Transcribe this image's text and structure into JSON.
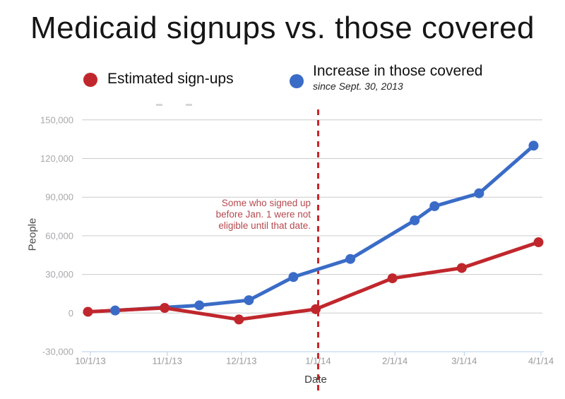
{
  "title": "Medicaid signups vs. those covered",
  "legend": {
    "items": [
      {
        "label": "Estimated sign-ups",
        "sublabel": "",
        "color": "#c0272d"
      },
      {
        "label": "Increase in those covered",
        "sublabel": "since Sept. 30, 2013",
        "color": "#3a6cc7"
      }
    ]
  },
  "annotation": {
    "lines": [
      "Some who signed up",
      "before Jan. 1 were not",
      "eligible until that date."
    ],
    "color": "#b5494f",
    "date_line": "1/1/14"
  },
  "chart_data": {
    "type": "line",
    "title": "Medicaid signups vs. those covered",
    "xlabel": "Date",
    "ylabel": "People",
    "grid": true,
    "legend_position": "top",
    "ylim": [
      -30000,
      150000
    ],
    "x_ticks": [
      "10/1/13",
      "11/1/13",
      "12/1/13",
      "1/1/14",
      "2/1/14",
      "3/1/14",
      "4/1/14"
    ],
    "y_ticks": [
      -30000,
      0,
      30000,
      60000,
      90000,
      120000,
      150000
    ],
    "y_tick_labels": [
      "-30,000",
      "0",
      "30,000",
      "60,000",
      "90,000",
      "120,000",
      "150,000"
    ],
    "series": [
      {
        "name": "Estimated sign-ups",
        "color": "#c0272d",
        "points": [
          {
            "date": "9/30/13",
            "value": 1000
          },
          {
            "date": "10/31/13",
            "value": 4000
          },
          {
            "date": "11/30/13",
            "value": -5000
          },
          {
            "date": "12/31/13",
            "value": 3000
          },
          {
            "date": "1/31/14",
            "value": 27000
          },
          {
            "date": "2/28/14",
            "value": 35000
          },
          {
            "date": "3/31/14",
            "value": 55000
          }
        ]
      },
      {
        "name": "Increase in those covered since Sept. 30, 2013",
        "color": "#3a6cc7",
        "points": [
          {
            "date": "10/11/13",
            "value": 2000
          },
          {
            "date": "11/14/13",
            "value": 6000
          },
          {
            "date": "12/4/13",
            "value": 10000
          },
          {
            "date": "12/22/13",
            "value": 28000
          },
          {
            "date": "1/14/14",
            "value": 42000
          },
          {
            "date": "2/9/14",
            "value": 72000
          },
          {
            "date": "2/17/14",
            "value": 83000
          },
          {
            "date": "3/7/14",
            "value": 93000
          },
          {
            "date": "3/29/14",
            "value": 130000
          }
        ]
      }
    ],
    "colors": {
      "grid": "#cccccc",
      "axis_line": "#b5cde8",
      "x_tick_label": "#98989c",
      "y_tick_label": "#a8a8ac",
      "dashed_line": "#c9252b"
    }
  }
}
